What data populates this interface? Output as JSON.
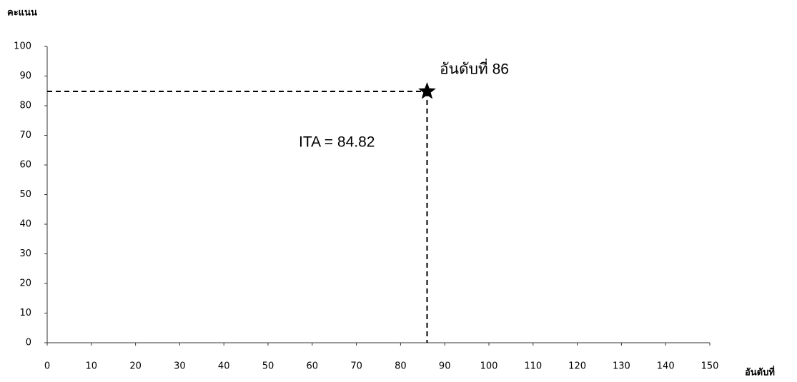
{
  "chart_data": {
    "type": "scatter",
    "x_label": "อันดับที่",
    "y_label": "คะแนน",
    "series": [
      {
        "x": [
          86
        ],
        "values": [
          84.82
        ],
        "color": "#000000"
      }
    ],
    "xlim": [
      0,
      150
    ],
    "ylim": [
      0,
      100
    ],
    "xticks": [
      0,
      10,
      20,
      30,
      40,
      50,
      60,
      70,
      80,
      90,
      100,
      110,
      120,
      130,
      140,
      150
    ],
    "yticks": [
      0,
      10,
      20,
      30,
      40,
      50,
      60,
      70,
      80,
      90,
      100
    ],
    "annotations": [
      "อันดับที่ 86",
      "ITA = 84.82"
    ],
    "guide_lines": true
  }
}
